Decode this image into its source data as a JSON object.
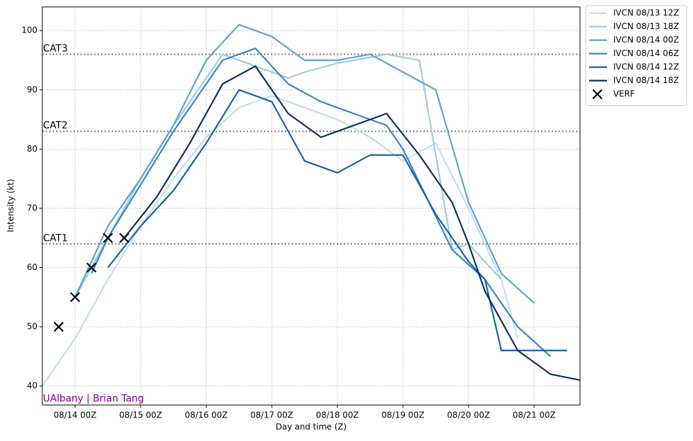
{
  "chart_data": {
    "type": "line",
    "xlabel": "Day and time (Z)",
    "ylabel": "Intensity (kt)",
    "credit": "UAlbany | Brian Tang",
    "xlim": [
      -0.5,
      7.7
    ],
    "ylim": [
      36.8,
      104
    ],
    "xticks": [
      {
        "value": 0,
        "label": "08/14 00Z"
      },
      {
        "value": 1,
        "label": "08/15 00Z"
      },
      {
        "value": 2,
        "label": "08/16 00Z"
      },
      {
        "value": 3,
        "label": "08/17 00Z"
      },
      {
        "value": 4,
        "label": "08/18 00Z"
      },
      {
        "value": 5,
        "label": "08/19 00Z"
      },
      {
        "value": 6,
        "label": "08/20 00Z"
      },
      {
        "value": 7,
        "label": "08/21 00Z"
      }
    ],
    "yticks": [
      40,
      50,
      60,
      70,
      80,
      90,
      100
    ],
    "grid": true,
    "legend": "outside-upper-right",
    "reference_lines": [
      {
        "label": "CAT3",
        "value": 96
      },
      {
        "label": "CAT2",
        "value": 83
      },
      {
        "label": "CAT1",
        "value": 64
      }
    ],
    "series": [
      {
        "name": "IVCN 08/13 12Z",
        "color": "#c6dbef",
        "x": [
          -0.5,
          0,
          0.5,
          1,
          1.5,
          2,
          2.5,
          3,
          3.5,
          4,
          4.5,
          5,
          5.5,
          6,
          6.5,
          6.75
        ],
        "values": [
          40,
          48,
          58,
          67,
          75,
          82,
          87,
          89,
          87,
          85,
          82,
          78,
          81,
          70,
          58,
          48
        ]
      },
      {
        "name": "IVCN 08/13 18Z",
        "color": "#9ecae1",
        "x": [
          0,
          0.5,
          1,
          1.5,
          2,
          2.25,
          2.5,
          3,
          3.25,
          3.5,
          4,
          4.5,
          4.75,
          5,
          5.25,
          5.75,
          6,
          6.5
        ],
        "values": [
          55,
          65,
          75,
          84,
          92,
          96,
          95,
          93,
          92,
          93,
          94.5,
          95.5,
          96,
          95.5,
          95,
          63,
          64,
          58
        ]
      },
      {
        "name": "IVCN 08/14 00Z",
        "color": "#5ba3d0",
        "x": [
          0,
          0.5,
          1,
          1.5,
          2,
          2.5,
          3,
          3.5,
          4,
          4.5,
          5,
          5.5,
          6,
          6.5,
          7
        ],
        "values": [
          55,
          67,
          75,
          84,
          95,
          101,
          99,
          95,
          95,
          96,
          93,
          90,
          71,
          59,
          54
        ]
      },
      {
        "name": "IVCN 08/14 06Z",
        "color": "#3a85c0",
        "x": [
          0.25,
          0.5,
          1,
          1.5,
          2,
          2.25,
          2.75,
          3,
          3.25,
          3.75,
          4,
          4.5,
          4.75,
          5,
          5.75,
          6.25,
          6.75,
          7.25
        ],
        "values": [
          59,
          65,
          74,
          83,
          91,
          95,
          97,
          94,
          91,
          88,
          87,
          85,
          84,
          80,
          63,
          58,
          50,
          45
        ]
      },
      {
        "name": "IVCN 08/14 12Z",
        "color": "#1460a8",
        "x": [
          0.5,
          1,
          1.5,
          2,
          2.5,
          3,
          3.5,
          4,
          4.5,
          5,
          5.5,
          6,
          6.25,
          6.5,
          7.5
        ],
        "values": [
          60,
          67,
          73,
          81,
          90,
          88,
          78,
          76,
          79,
          79,
          69,
          61,
          58,
          46,
          46
        ]
      },
      {
        "name": "IVCN 08/14 18Z",
        "color": "#0b2d64",
        "x": [
          0.75,
          1.25,
          1.75,
          2.25,
          2.75,
          3.25,
          3.75,
          4,
          4.75,
          5.25,
          5.75,
          6,
          6.25,
          6.75,
          7.25,
          7.7
        ],
        "values": [
          65,
          72,
          81,
          91,
          94,
          86,
          82,
          83,
          86,
          79,
          71,
          64,
          56,
          46,
          42,
          41
        ]
      },
      {
        "name": "VERF",
        "color": "#000000",
        "marker": "x",
        "x": [
          -0.25,
          0,
          0.25,
          0.5,
          0.75
        ],
        "values": [
          50,
          55,
          60,
          65,
          65
        ]
      }
    ]
  }
}
